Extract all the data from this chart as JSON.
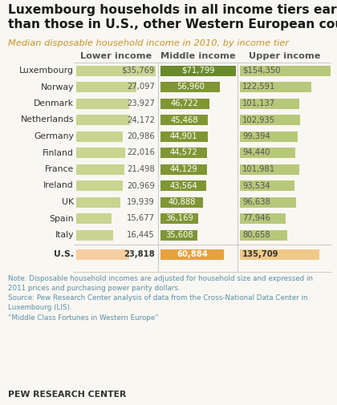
{
  "title": "Luxembourg households in all income tiers earn more\nthan those in U.S., other Western European countries",
  "subtitle": "Median disposable household income in 2010, by income tier",
  "col_headers": [
    "Lower income",
    "Middle income",
    "Upper income"
  ],
  "countries": [
    "Luxembourg",
    "Norway",
    "Denmark",
    "Netherlands",
    "Germany",
    "Finland",
    "France",
    "Ireland",
    "UK",
    "Spain",
    "Italy",
    "U.S."
  ],
  "lower": [
    35769,
    27097,
    23927,
    24172,
    20986,
    22016,
    21498,
    20969,
    19939,
    15677,
    16445,
    23818
  ],
  "middle": [
    71799,
    56960,
    46722,
    45468,
    44901,
    44572,
    44129,
    43564,
    40888,
    36169,
    35608,
    60884
  ],
  "upper": [
    154350,
    122591,
    101137,
    102935,
    99394,
    94440,
    101981,
    93534,
    96638,
    77946,
    80658,
    135709
  ],
  "lower_labels": [
    "$35,769",
    "27,097",
    "23,927",
    "24,172",
    "20,986",
    "22,016",
    "21,498",
    "20,969",
    "19,939",
    "15,677",
    "16,445",
    "23,818"
  ],
  "middle_labels": [
    "$71,799",
    "56,960",
    "46,722",
    "45,468",
    "44,901",
    "44,572",
    "44,129",
    "43,564",
    "40,888",
    "36,169",
    "35,608",
    "60,884"
  ],
  "upper_labels": [
    "$154,350",
    "122,591",
    "101,137",
    "102,935",
    "99,394",
    "94,440",
    "101,981",
    "93,534",
    "96,638",
    "77,946",
    "80,658",
    "135,709"
  ],
  "lower_color_normal": "#c9d491",
  "lower_color_us": "#f5cfa0",
  "middle_color_normal": "#7f9634",
  "middle_color_lux": "#6a8a2a",
  "middle_color_us": "#e8a040",
  "upper_color_normal": "#b8c87a",
  "upper_color_us": "#f0c888",
  "note": "Note: Disposable household incomes are adjusted for household size and expressed in\n2011 prices and purchasing power parity dollars.\nSource: Pew Research Center analysis of data from the Cross-National Data Center in\nLuxembourg (LIS).\n“Middle Class Fortunes in Western Europe”",
  "footer": "PEW RESEARCH CENTER",
  "bg_color": "#f9f7f2",
  "title_color": "#1a1a1a",
  "subtitle_color": "#c8922a",
  "note_color": "#5b8fa8",
  "header_color": "#555555"
}
